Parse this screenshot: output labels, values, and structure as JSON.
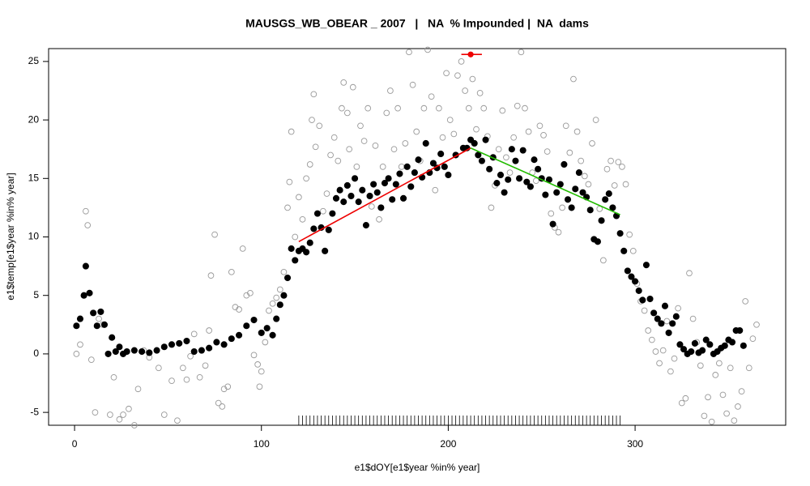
{
  "chart_data": {
    "type": "scatter",
    "title": "MAUSGS_WB_OBEAR _ 2007   |   NA  % Impounded |  NA  dams",
    "x_label": "e1$dOY[e1$year %in% year]",
    "y_label": "e1$temp[e1$year %in% year]",
    "xlim": [
      -13.9,
      380.6
    ],
    "ylim": [
      -6.1,
      26.1
    ],
    "xticks": [
      0,
      100,
      200,
      300
    ],
    "yticks": [
      -5,
      0,
      5,
      10,
      15,
      20,
      25
    ],
    "series": [
      {
        "color": "#999999",
        "filled": false,
        "x": [
          1,
          3,
          6,
          7,
          9,
          11,
          13,
          15,
          19,
          21,
          24,
          26,
          29,
          32,
          34,
          37,
          40,
          45,
          48,
          52,
          55,
          58,
          60,
          62,
          64,
          67,
          70,
          72,
          73,
          75,
          77,
          79,
          80,
          82,
          84,
          86,
          88,
          90,
          92,
          94,
          96,
          98,
          99,
          100,
          102,
          104,
          106,
          108,
          110,
          112,
          114,
          115,
          116,
          118,
          120,
          122,
          124,
          126,
          127,
          128,
          129,
          131,
          133,
          135,
          137,
          139,
          141,
          143,
          144,
          146,
          147,
          149,
          151,
          153,
          155,
          157,
          159,
          161,
          163,
          165,
          167,
          169,
          171,
          173,
          175,
          177,
          179,
          181,
          183,
          185,
          187,
          189,
          191,
          193,
          195,
          197,
          199,
          201,
          203,
          205,
          207,
          209,
          211,
          213,
          215,
          217,
          219,
          221,
          223,
          225,
          227,
          229,
          231,
          233,
          235,
          237,
          239,
          241,
          243,
          245,
          247,
          249,
          251,
          253,
          255,
          257,
          259,
          261,
          263,
          265,
          267,
          269,
          271,
          273,
          275,
          277,
          279,
          281,
          283,
          285,
          287,
          289,
          291,
          293,
          295,
          297,
          299,
          301,
          303,
          305,
          307,
          309,
          311,
          313,
          315,
          317,
          319,
          321,
          323,
          325,
          327,
          329,
          331,
          333,
          335,
          337,
          339,
          341,
          343,
          345,
          347,
          349,
          351,
          353,
          355,
          357,
          359,
          361,
          363,
          365
        ],
        "values": [
          0,
          0.8,
          12.2,
          11,
          -0.5,
          -5,
          3,
          2.5,
          -5.2,
          -2,
          -5.6,
          -5.2,
          -4.7,
          -6.1,
          -3,
          0.3,
          -0.3,
          -1.2,
          -5.2,
          -2.3,
          -5.7,
          -1.2,
          -2.2,
          -0.2,
          1.7,
          -2,
          -1,
          2,
          6.7,
          10.2,
          -4.2,
          -4.5,
          -3,
          -2.8,
          7,
          4,
          3.8,
          9,
          5,
          5.2,
          -0.1,
          -0.9,
          -2.8,
          -1.5,
          1,
          3.7,
          4.3,
          4.8,
          5.5,
          7,
          12.5,
          14.7,
          19,
          10,
          13.4,
          11.5,
          15,
          16.2,
          20,
          22.2,
          17.7,
          19.5,
          12.2,
          13.7,
          17,
          18.5,
          16.5,
          21,
          23.2,
          20.6,
          17.5,
          22.8,
          16,
          19.5,
          18.2,
          21,
          12.6,
          17.8,
          11.5,
          16,
          20.6,
          22.5,
          17.5,
          21,
          16,
          18,
          25.8,
          23,
          19,
          16.5,
          21,
          26,
          22,
          14,
          21,
          18.5,
          24,
          20,
          18.8,
          23.8,
          25,
          22.5,
          21,
          23.5,
          19.2,
          22.3,
          21,
          18.6,
          12.5,
          14.4,
          17.5,
          20.8,
          16.8,
          15.5,
          18.5,
          21.2,
          25.8,
          21,
          19,
          15.5,
          14.8,
          19.5,
          18.7,
          17.3,
          12,
          10.8,
          10.4,
          12.5,
          19.5,
          17.2,
          23.5,
          19,
          16.5,
          15.2,
          14.5,
          18,
          20,
          12.4,
          8,
          15.8,
          16.5,
          14.4,
          16.4,
          16,
          14.5,
          10.2,
          8.8,
          6,
          4.5,
          3.7,
          2,
          1.2,
          0.2,
          -0.8,
          0.3,
          2.8,
          -1.5,
          -0.4,
          3.9,
          -4.2,
          -3.8,
          6.9,
          3,
          1,
          -1,
          -5.3,
          -3.7,
          -5.8,
          -1.8,
          -0.8,
          -3.5,
          -5.1,
          -1.2,
          -5.7,
          -4.5,
          -3.2,
          4.5,
          -1.2,
          1.3,
          2.5
        ]
      },
      {
        "color": "#000000",
        "filled": true,
        "x": [
          1,
          3,
          5,
          6,
          8,
          10,
          12,
          14,
          16,
          18,
          20,
          22,
          24,
          26,
          28,
          32,
          36,
          40,
          44,
          48,
          52,
          56,
          60,
          64,
          68,
          72,
          76,
          80,
          84,
          88,
          92,
          96,
          100,
          103,
          106,
          108,
          110,
          112,
          114,
          116,
          118,
          120,
          122,
          124,
          126,
          128,
          130,
          132,
          134,
          136,
          138,
          140,
          142,
          144,
          146,
          148,
          150,
          152,
          154,
          156,
          158,
          160,
          162,
          164,
          166,
          168,
          170,
          172,
          174,
          176,
          178,
          180,
          182,
          184,
          186,
          188,
          190,
          192,
          194,
          196,
          198,
          200,
          204,
          208,
          210,
          212,
          214,
          216,
          218,
          220,
          222,
          224,
          226,
          228,
          230,
          232,
          234,
          236,
          238,
          240,
          242,
          244,
          246,
          248,
          250,
          252,
          254,
          256,
          258,
          260,
          262,
          264,
          266,
          268,
          270,
          272,
          274,
          276,
          278,
          280,
          282,
          284,
          286,
          288,
          290,
          292,
          294,
          296,
          298,
          300,
          302,
          304,
          306,
          308,
          310,
          312,
          314,
          316,
          318,
          320,
          322,
          324,
          326,
          328,
          330,
          332,
          334,
          336,
          338,
          340,
          342,
          344,
          346,
          348,
          350,
          352,
          354,
          356,
          358
        ],
        "values": [
          2.4,
          3,
          5,
          7.5,
          5.2,
          3.5,
          2.4,
          3.6,
          2.5,
          0,
          1.4,
          0.2,
          0.6,
          0,
          0.2,
          0.3,
          0.2,
          0.1,
          0.3,
          0.6,
          0.8,
          0.9,
          1.1,
          0.2,
          0.3,
          0.5,
          1,
          0.8,
          1.3,
          1.6,
          2.4,
          2.9,
          1.8,
          2.2,
          1.6,
          3,
          4.2,
          5,
          6.5,
          9,
          8,
          8.8,
          9,
          8.7,
          9.5,
          10.7,
          12,
          10.8,
          8.8,
          10.6,
          12,
          13.3,
          14,
          13,
          14.4,
          13.5,
          15,
          13,
          14,
          11,
          13.5,
          14.5,
          13.8,
          12.5,
          14.6,
          15,
          13.2,
          14.5,
          15.4,
          13.3,
          16,
          14.3,
          15.5,
          16.6,
          15.1,
          18,
          15.5,
          16.3,
          15.9,
          17.1,
          16,
          15.3,
          17,
          17.6,
          17.6,
          18.3,
          18,
          17,
          16.5,
          18.3,
          15.8,
          16.8,
          14.6,
          15.3,
          13.8,
          14.9,
          17.5,
          16.5,
          15,
          17.4,
          14.7,
          14.3,
          16.6,
          15.8,
          15,
          13.6,
          14.9,
          11.1,
          13.8,
          14.5,
          16.2,
          13.2,
          12.5,
          14.1,
          15.5,
          13.8,
          13.4,
          12.3,
          9.8,
          9.6,
          11.4,
          13.2,
          13.7,
          12.5,
          11.8,
          10.3,
          8.8,
          7.1,
          6.6,
          6.2,
          5.4,
          4.6,
          7.6,
          4.7,
          3.5,
          3,
          2.6,
          4.1,
          1.8,
          2.6,
          3.2,
          0.8,
          0.4,
          0,
          0.2,
          0.9,
          0.1,
          0.3,
          1.2,
          0.8,
          0,
          0.2,
          0.5,
          0.7,
          1.2,
          1,
          2,
          2,
          0.7
        ]
      }
    ],
    "lines": [
      {
        "color": "#ee0000",
        "x": [
          120,
          212
        ],
        "values": [
          9.6,
          17.6
        ]
      },
      {
        "color": "#22bb00",
        "x": [
          212,
          292
        ],
        "values": [
          17.6,
          11.9
        ]
      }
    ],
    "marker": {
      "color": "#ee0000",
      "x": 212,
      "y": 25.6,
      "x_range": [
        207,
        218
      ]
    },
    "rug": [
      120,
      122,
      124,
      126,
      128,
      130,
      132,
      134,
      136,
      138,
      140,
      142,
      144,
      146,
      148,
      150,
      152,
      154,
      156,
      158,
      160,
      162,
      164,
      166,
      168,
      170,
      172,
      174,
      176,
      178,
      180,
      182,
      184,
      186,
      188,
      190,
      192,
      194,
      196,
      198,
      200,
      202,
      204,
      206,
      208,
      210,
      212,
      214,
      216,
      218,
      220,
      222,
      224,
      226,
      228,
      230,
      232,
      234,
      236,
      238,
      240,
      242,
      244,
      246,
      248,
      250,
      252,
      254,
      256,
      258,
      260,
      262,
      264,
      266,
      268,
      270,
      272,
      274,
      276,
      278,
      280,
      282,
      284,
      286,
      288,
      290,
      292
    ]
  }
}
